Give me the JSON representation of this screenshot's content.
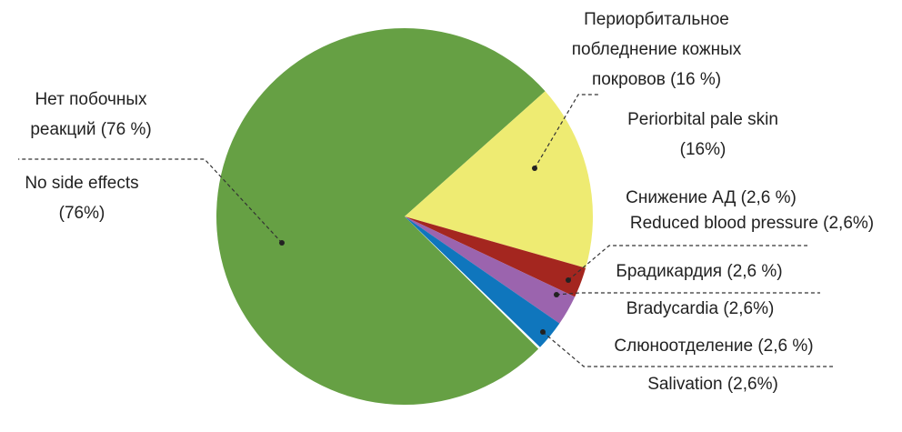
{
  "chart_data": {
    "type": "pie",
    "values": [
      76,
      16,
      2.6,
      2.6,
      2.6
    ],
    "colors": [
      "#66a044",
      "#eeeb72",
      "#a4261f",
      "#9b64ae",
      "#0f76bd"
    ],
    "labels": [
      {
        "ru": [
          "Нет побочных",
          "реакций (76 %)"
        ],
        "en": [
          "No side effects",
          "(76%)"
        ]
      },
      {
        "ru": [
          "Периорбитальное",
          "побледнение кожных",
          "покровов (16 %)"
        ],
        "en": [
          "Periorbital pale skin",
          "(16%)"
        ]
      },
      {
        "ru": [
          "Снижение АД (2,6 %)"
        ],
        "en": [
          "Reduced blood pressure (2,6%)"
        ]
      },
      {
        "ru": [
          "Брадикардия (2,6 %)"
        ],
        "en": [
          "Bradycardia (2,6%)"
        ]
      },
      {
        "ru": [
          "Слюноотделение (2,6 %)"
        ],
        "en": [
          "Salivation (2,6%)"
        ]
      }
    ]
  }
}
